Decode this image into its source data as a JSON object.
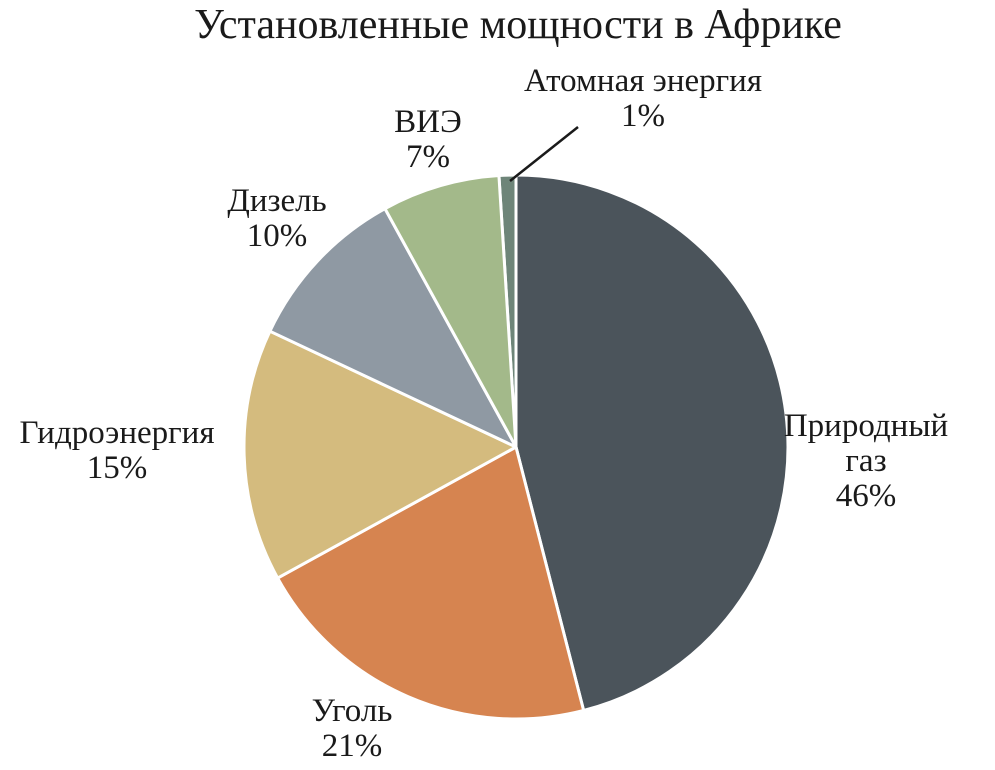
{
  "chart_data": {
    "type": "pie",
    "title": "Установленные мощности в Африке",
    "slices": [
      {
        "label": [
          "Атомная энергия"
        ],
        "value": 1,
        "value_label": "1%",
        "color": "#6e8579"
      },
      {
        "label": [
          "Природный",
          "газ"
        ],
        "value": 46,
        "value_label": "46%",
        "color": "#4b545b"
      },
      {
        "label": [
          "Уголь"
        ],
        "value": 21,
        "value_label": "21%",
        "color": "#d68450"
      },
      {
        "label": [
          "Гидроэнергия"
        ],
        "value": 15,
        "value_label": "15%",
        "color": "#d4bb7e"
      },
      {
        "label": [
          "Дизель"
        ],
        "value": 10,
        "value_label": "10%",
        "color": "#8f99a3"
      },
      {
        "label": [
          "ВИЭ"
        ],
        "value": 7,
        "value_label": "7%",
        "color": "#a3b98a"
      }
    ],
    "start_angle_deg": -3.6,
    "direction": "clockwise",
    "slice_border_color": "#ffffff",
    "leader_line_color": "#1a1a1a"
  }
}
